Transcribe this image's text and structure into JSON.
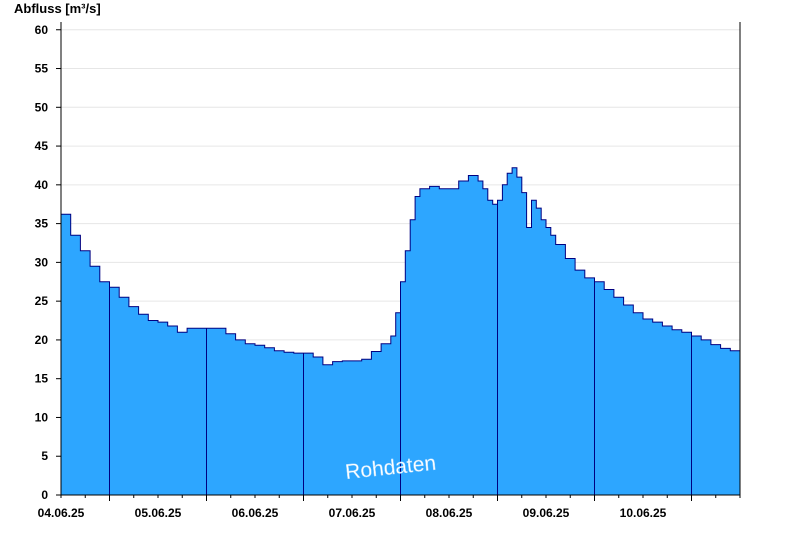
{
  "chart_data": {
    "type": "area",
    "ylabel": "Abfluss [m³/s]",
    "xlabel": "",
    "watermark": "Rohdaten",
    "ylim": [
      0,
      61
    ],
    "yticks": [
      0,
      5,
      10,
      15,
      20,
      25,
      30,
      35,
      40,
      45,
      50,
      55,
      60
    ],
    "xlim": [
      0,
      7
    ],
    "day_boundaries": [
      0.5,
      1.5,
      2.5,
      3.5,
      4.5,
      5.5,
      6.5
    ],
    "xtick_positions": [
      0,
      1,
      2,
      3,
      4,
      5,
      6
    ],
    "xtick_labels": [
      "04.06.25",
      "05.06.25",
      "06.06.25",
      "07.06.25",
      "08.06.25",
      "09.06.25",
      "10.06.25"
    ],
    "grid": true,
    "colors": {
      "fill": "#2da6ff",
      "line": "#000080",
      "grid": "#e6e6e6",
      "axis": "#000000"
    },
    "series": [
      {
        "x": [
          0,
          0.1,
          0.2,
          0.3,
          0.4,
          0.5,
          0.6,
          0.7,
          0.8,
          0.9,
          1.0,
          1.1,
          1.2,
          1.3,
          1.4,
          1.5,
          1.6,
          1.7,
          1.8,
          1.9,
          2.0,
          2.1,
          2.2,
          2.3,
          2.4,
          2.5,
          2.6,
          2.7,
          2.8,
          2.9,
          3.0,
          3.1,
          3.2,
          3.3,
          3.4,
          3.45,
          3.5,
          3.55,
          3.6,
          3.65,
          3.7,
          3.8,
          3.9,
          4.0,
          4.1,
          4.2,
          4.3,
          4.35,
          4.4,
          4.45,
          4.5,
          4.55,
          4.6,
          4.65,
          4.7,
          4.75,
          4.8,
          4.85,
          4.9,
          4.95,
          5.0,
          5.05,
          5.1,
          5.2,
          5.3,
          5.4,
          5.5,
          5.6,
          5.7,
          5.8,
          5.9,
          6.0,
          6.1,
          6.2,
          6.3,
          6.4,
          6.5,
          6.6,
          6.7,
          6.8,
          6.9,
          7.0
        ],
        "y": [
          36.2,
          33.5,
          31.5,
          29.5,
          27.5,
          26.8,
          25.5,
          24.3,
          23.3,
          22.5,
          22.3,
          21.8,
          21.0,
          21.5,
          21.5,
          21.5,
          21.5,
          20.8,
          20.0,
          19.5,
          19.3,
          19.0,
          18.6,
          18.4,
          18.3,
          18.3,
          17.8,
          16.8,
          17.2,
          17.3,
          17.3,
          17.5,
          18.5,
          19.5,
          20.5,
          23.5,
          27.5,
          31.5,
          35.5,
          38.5,
          39.5,
          39.8,
          39.5,
          39.5,
          40.5,
          41.2,
          40.5,
          39.5,
          38.0,
          37.5,
          38.0,
          40.0,
          41.5,
          42.2,
          41.0,
          39.0,
          34.5,
          38.0,
          37.0,
          35.5,
          34.5,
          33.5,
          32.3,
          30.5,
          29.0,
          28.0,
          27.5,
          26.5,
          25.5,
          24.5,
          23.5,
          22.7,
          22.3,
          21.8,
          21.3,
          21.0,
          20.5,
          20.0,
          19.4,
          18.9,
          18.6,
          18.5
        ]
      }
    ]
  }
}
